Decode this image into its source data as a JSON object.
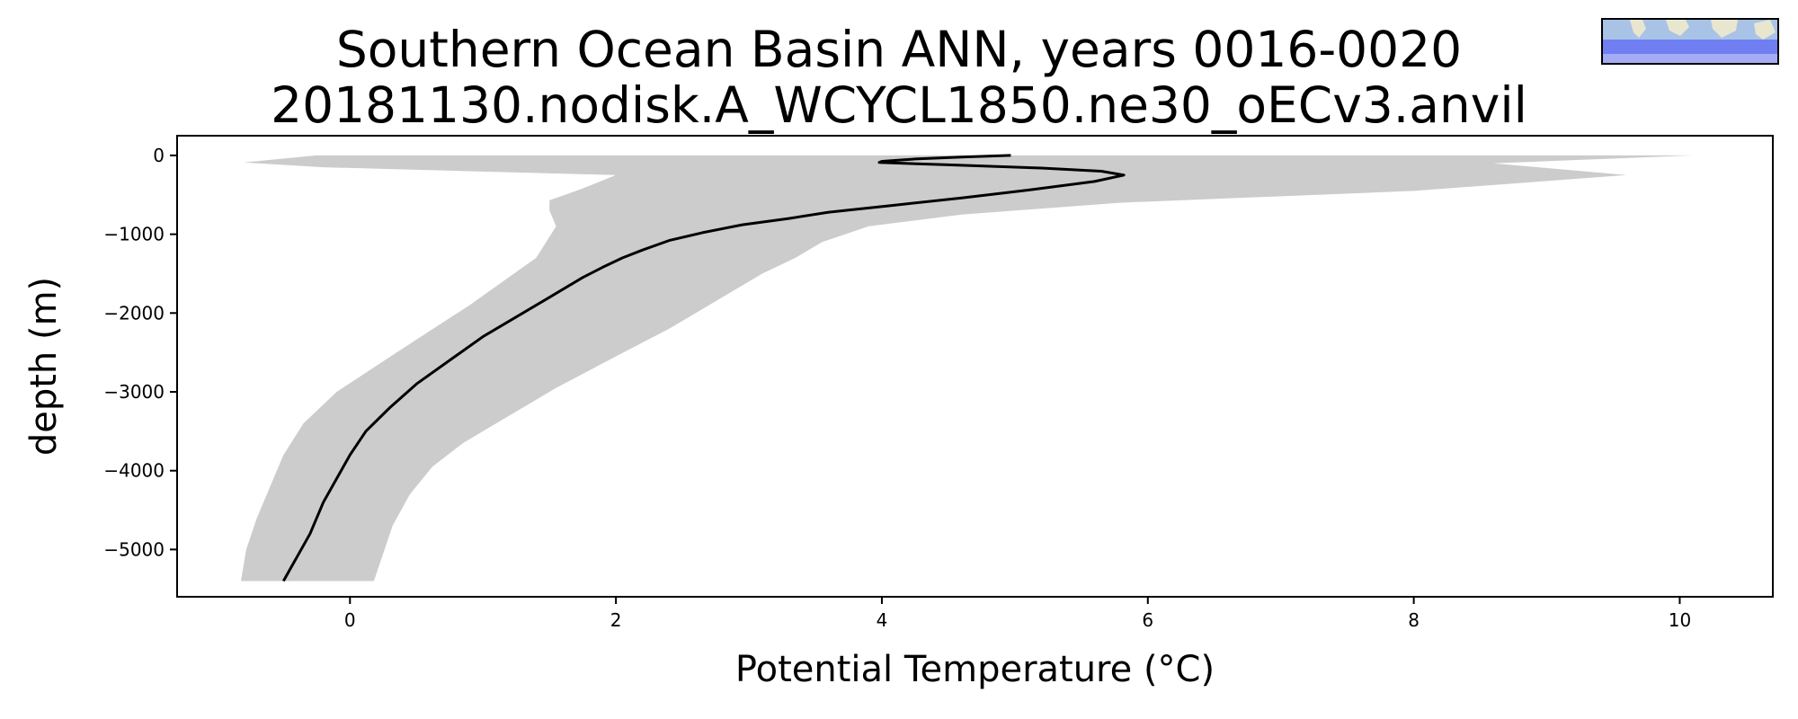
{
  "chart_data": {
    "type": "area",
    "title_lines": [
      "Southern Ocean Basin ANN, years 0016-0020",
      "20181130.nodisk.A_WCYCL1850.ne30_oECv3.anvil"
    ],
    "xlabel": "Potential Temperature (°C)",
    "ylabel": "depth (m)",
    "xlim": [
      -1.3,
      10.7
    ],
    "ylim": [
      -5600,
      250
    ],
    "x_ticks": [
      0,
      2,
      4,
      6,
      8,
      10
    ],
    "y_ticks": [
      0,
      -1000,
      -2000,
      -3000,
      -4000,
      -5000
    ],
    "grid": false,
    "colors": {
      "mean_line": "#000000",
      "range_band": "#cccccc"
    },
    "series": [
      {
        "kind": "line",
        "points": [
          [
            4.97,
            0
          ],
          [
            4.6,
            -20
          ],
          [
            4.25,
            -45
          ],
          [
            4.0,
            -75
          ],
          [
            3.98,
            -90
          ],
          [
            4.5,
            -120
          ],
          [
            5.2,
            -160
          ],
          [
            5.65,
            -200
          ],
          [
            5.82,
            -250
          ],
          [
            5.6,
            -330
          ],
          [
            5.1,
            -440
          ],
          [
            4.6,
            -540
          ],
          [
            4.1,
            -630
          ],
          [
            3.6,
            -720
          ],
          [
            3.3,
            -800
          ],
          [
            2.95,
            -880
          ],
          [
            2.65,
            -980
          ],
          [
            2.4,
            -1080
          ],
          [
            2.2,
            -1200
          ],
          [
            2.05,
            -1300
          ],
          [
            1.9,
            -1420
          ],
          [
            1.75,
            -1550
          ],
          [
            1.5,
            -1800
          ],
          [
            1.25,
            -2050
          ],
          [
            1.0,
            -2300
          ],
          [
            0.75,
            -2600
          ],
          [
            0.5,
            -2900
          ],
          [
            0.3,
            -3200
          ],
          [
            0.12,
            -3500
          ],
          [
            0.0,
            -3800
          ],
          [
            -0.1,
            -4100
          ],
          [
            -0.2,
            -4400
          ],
          [
            -0.3,
            -4800
          ],
          [
            -0.4,
            -5100
          ],
          [
            -0.45,
            -5250
          ],
          [
            -0.5,
            -5400
          ]
        ]
      },
      {
        "kind": "band",
        "upper": [
          [
            10.1,
            0
          ],
          [
            8.6,
            -100
          ],
          [
            9.6,
            -250
          ],
          [
            8.0,
            -450
          ],
          [
            5.8,
            -600
          ],
          [
            4.6,
            -750
          ],
          [
            3.9,
            -900
          ],
          [
            3.55,
            -1100
          ],
          [
            3.35,
            -1300
          ],
          [
            3.1,
            -1500
          ],
          [
            2.8,
            -1800
          ],
          [
            2.4,
            -2200
          ],
          [
            2.0,
            -2550
          ],
          [
            1.55,
            -2950
          ],
          [
            1.2,
            -3300
          ],
          [
            0.85,
            -3650
          ],
          [
            0.62,
            -3950
          ],
          [
            0.45,
            -4300
          ],
          [
            0.32,
            -4700
          ],
          [
            0.24,
            -5100
          ],
          [
            0.18,
            -5400
          ]
        ],
        "lower": [
          [
            -0.25,
            0
          ],
          [
            -0.8,
            -90
          ],
          [
            -0.2,
            -150
          ],
          [
            2.0,
            -250
          ],
          [
            1.75,
            -420
          ],
          [
            1.5,
            -570
          ],
          [
            1.5,
            -700
          ],
          [
            1.55,
            -900
          ],
          [
            1.4,
            -1300
          ],
          [
            0.9,
            -1900
          ],
          [
            0.35,
            -2500
          ],
          [
            -0.1,
            -3000
          ],
          [
            -0.35,
            -3400
          ],
          [
            -0.5,
            -3800
          ],
          [
            -0.6,
            -4200
          ],
          [
            -0.7,
            -4600
          ],
          [
            -0.78,
            -5000
          ],
          [
            -0.82,
            -5400
          ]
        ]
      }
    ]
  }
}
